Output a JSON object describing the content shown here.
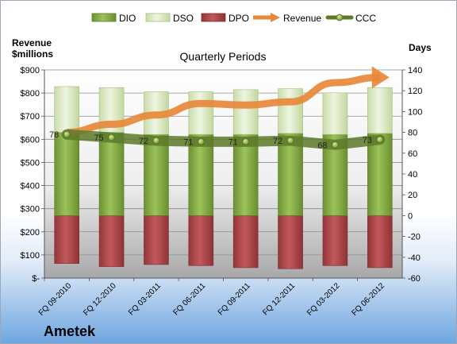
{
  "chart_data": {
    "type": "bar",
    "title": "Quarterly Periods",
    "company": "Ametek",
    "y_left_label": [
      "Revenue",
      "$millions"
    ],
    "y_right_label": "Days",
    "y_left_range": [
      0,
      900
    ],
    "y_right_range": [
      -60,
      140
    ],
    "y_left_ticks": [
      "$-",
      "$100",
      "$200",
      "$300",
      "$400",
      "$500",
      "$600",
      "$700",
      "$800",
      "$900"
    ],
    "y_right_ticks": [
      "-60",
      "-40",
      "-20",
      "0",
      "20",
      "40",
      "60",
      "80",
      "100",
      "120",
      "140"
    ],
    "categories": [
      "FQ 09-2010",
      "FQ 12-2010",
      "FQ 03-2011",
      "FQ 06-2011",
      "FQ 09-2011",
      "FQ 12-2011",
      "FQ 03-2012",
      "FQ 06-2012"
    ],
    "legend": [
      "DIO",
      "DSO",
      "DPO",
      "Revenue",
      "CCC"
    ],
    "colors": {
      "DIO": "#8ab04a",
      "DSO": "#dbeac0",
      "DPO": "#b64c4f",
      "Revenue": "#e8883a",
      "CCC": "#5c7a2a"
    },
    "series": [
      {
        "name": "DIO",
        "axis": "right",
        "values": [
          80,
          80,
          78,
          78,
          78,
          79,
          78,
          79
        ]
      },
      {
        "name": "DSO",
        "axis": "right",
        "values": [
          44,
          43,
          41,
          41,
          43,
          43,
          40,
          44
        ]
      },
      {
        "name": "DPO",
        "axis": "right",
        "values": [
          46,
          49,
          47,
          48,
          50,
          51,
          48,
          50
        ]
      },
      {
        "name": "Revenue",
        "axis": "left",
        "values": [
          630,
          665,
          705,
          755,
          748,
          762,
          845,
          868
        ]
      },
      {
        "name": "CCC",
        "axis": "right",
        "values": [
          78,
          75,
          72,
          71,
          71,
          72,
          68,
          73
        ]
      }
    ],
    "ccc_labels": [
      "78",
      "75",
      "72",
      "71",
      "71",
      "72",
      "68",
      "73"
    ],
    "grid": true,
    "legend_position": "top"
  }
}
